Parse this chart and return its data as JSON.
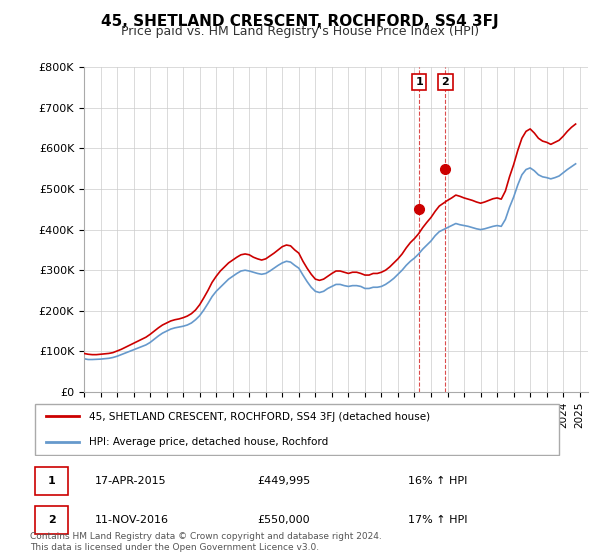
{
  "title": "45, SHETLAND CRESCENT, ROCHFORD, SS4 3FJ",
  "subtitle": "Price paid vs. HM Land Registry's House Price Index (HPI)",
  "ylabel_ticks": [
    "£0",
    "£100K",
    "£200K",
    "£300K",
    "£400K",
    "£500K",
    "£600K",
    "£700K",
    "£800K"
  ],
  "ylim": [
    0,
    800000
  ],
  "yticks": [
    0,
    100000,
    200000,
    300000,
    400000,
    500000,
    600000,
    700000,
    800000
  ],
  "xlim_start": 1995.0,
  "xlim_end": 2025.5,
  "background_color": "#ffffff",
  "grid_color": "#cccccc",
  "red_line_color": "#cc0000",
  "blue_line_color": "#6699cc",
  "transaction1": {
    "date_num": 2015.29,
    "price": 449995,
    "label": "1",
    "date_str": "17-APR-2015",
    "price_str": "£449,995",
    "hpi_str": "16% ↑ HPI"
  },
  "transaction2": {
    "date_num": 2016.87,
    "price": 550000,
    "label": "2",
    "date_str": "11-NOV-2016",
    "price_str": "£550,000",
    "hpi_str": "17% ↑ HPI"
  },
  "legend_label_red": "45, SHETLAND CRESCENT, ROCHFORD, SS4 3FJ (detached house)",
  "legend_label_blue": "HPI: Average price, detached house, Rochford",
  "footer": "Contains HM Land Registry data © Crown copyright and database right 2024.\nThis data is licensed under the Open Government Licence v3.0.",
  "hpi_data_x": [
    1995.0,
    1995.25,
    1995.5,
    1995.75,
    1996.0,
    1996.25,
    1996.5,
    1996.75,
    1997.0,
    1997.25,
    1997.5,
    1997.75,
    1998.0,
    1998.25,
    1998.5,
    1998.75,
    1999.0,
    1999.25,
    1999.5,
    1999.75,
    2000.0,
    2000.25,
    2000.5,
    2000.75,
    2001.0,
    2001.25,
    2001.5,
    2001.75,
    2002.0,
    2002.25,
    2002.5,
    2002.75,
    2003.0,
    2003.25,
    2003.5,
    2003.75,
    2004.0,
    2004.25,
    2004.5,
    2004.75,
    2005.0,
    2005.25,
    2005.5,
    2005.75,
    2006.0,
    2006.25,
    2006.5,
    2006.75,
    2007.0,
    2007.25,
    2007.5,
    2007.75,
    2008.0,
    2008.25,
    2008.5,
    2008.75,
    2009.0,
    2009.25,
    2009.5,
    2009.75,
    2010.0,
    2010.25,
    2010.5,
    2010.75,
    2011.0,
    2011.25,
    2011.5,
    2011.75,
    2012.0,
    2012.25,
    2012.5,
    2012.75,
    2013.0,
    2013.25,
    2013.5,
    2013.75,
    2014.0,
    2014.25,
    2014.5,
    2014.75,
    2015.0,
    2015.25,
    2015.5,
    2015.75,
    2016.0,
    2016.25,
    2016.5,
    2016.75,
    2017.0,
    2017.25,
    2017.5,
    2017.75,
    2018.0,
    2018.25,
    2018.5,
    2018.75,
    2019.0,
    2019.25,
    2019.5,
    2019.75,
    2020.0,
    2020.25,
    2020.5,
    2020.75,
    2021.0,
    2021.25,
    2021.5,
    2021.75,
    2022.0,
    2022.25,
    2022.5,
    2022.75,
    2023.0,
    2023.25,
    2023.5,
    2023.75,
    2024.0,
    2024.25,
    2024.5,
    2024.75
  ],
  "hpi_data_y": [
    82000,
    80000,
    80000,
    80500,
    81000,
    82000,
    83000,
    85000,
    88000,
    92000,
    96000,
    100000,
    104000,
    108000,
    112000,
    116000,
    122000,
    130000,
    138000,
    145000,
    150000,
    155000,
    158000,
    160000,
    162000,
    165000,
    170000,
    178000,
    188000,
    202000,
    218000,
    235000,
    248000,
    258000,
    268000,
    278000,
    285000,
    292000,
    298000,
    300000,
    298000,
    295000,
    292000,
    290000,
    292000,
    298000,
    305000,
    312000,
    318000,
    322000,
    320000,
    312000,
    305000,
    288000,
    272000,
    258000,
    248000,
    245000,
    248000,
    255000,
    260000,
    265000,
    265000,
    262000,
    260000,
    262000,
    262000,
    260000,
    255000,
    255000,
    258000,
    258000,
    260000,
    265000,
    272000,
    280000,
    290000,
    300000,
    312000,
    322000,
    330000,
    340000,
    352000,
    362000,
    372000,
    385000,
    395000,
    400000,
    405000,
    410000,
    415000,
    412000,
    410000,
    408000,
    405000,
    402000,
    400000,
    402000,
    405000,
    408000,
    410000,
    408000,
    425000,
    455000,
    480000,
    510000,
    535000,
    548000,
    552000,
    545000,
    535000,
    530000,
    528000,
    525000,
    528000,
    532000,
    540000,
    548000,
    555000,
    562000
  ],
  "price_data_x": [
    1995.0,
    1995.25,
    1995.5,
    1995.75,
    1996.0,
    1996.25,
    1996.5,
    1996.75,
    1997.0,
    1997.25,
    1997.5,
    1997.75,
    1998.0,
    1998.25,
    1998.5,
    1998.75,
    1999.0,
    1999.25,
    1999.5,
    1999.75,
    2000.0,
    2000.25,
    2000.5,
    2000.75,
    2001.0,
    2001.25,
    2001.5,
    2001.75,
    2002.0,
    2002.25,
    2002.5,
    2002.75,
    2003.0,
    2003.25,
    2003.5,
    2003.75,
    2004.0,
    2004.25,
    2004.5,
    2004.75,
    2005.0,
    2005.25,
    2005.5,
    2005.75,
    2006.0,
    2006.25,
    2006.5,
    2006.75,
    2007.0,
    2007.25,
    2007.5,
    2007.75,
    2008.0,
    2008.25,
    2008.5,
    2008.75,
    2009.0,
    2009.25,
    2009.5,
    2009.75,
    2010.0,
    2010.25,
    2010.5,
    2010.75,
    2011.0,
    2011.25,
    2011.5,
    2011.75,
    2012.0,
    2012.25,
    2012.5,
    2012.75,
    2013.0,
    2013.25,
    2013.5,
    2013.75,
    2014.0,
    2014.25,
    2014.5,
    2014.75,
    2015.0,
    2015.25,
    2015.5,
    2015.75,
    2016.0,
    2016.25,
    2016.5,
    2016.75,
    2017.0,
    2017.25,
    2017.5,
    2017.75,
    2018.0,
    2018.25,
    2018.5,
    2018.75,
    2019.0,
    2019.25,
    2019.5,
    2019.75,
    2020.0,
    2020.25,
    2020.5,
    2020.75,
    2021.0,
    2021.25,
    2021.5,
    2021.75,
    2022.0,
    2022.25,
    2022.5,
    2022.75,
    2023.0,
    2023.25,
    2023.5,
    2023.75,
    2024.0,
    2024.25,
    2024.5,
    2024.75
  ],
  "price_data_y": [
    95000,
    93000,
    92000,
    92000,
    93000,
    94000,
    95000,
    97000,
    101000,
    105000,
    110000,
    115000,
    120000,
    125000,
    130000,
    135000,
    142000,
    150000,
    158000,
    165000,
    170000,
    175000,
    178000,
    180000,
    183000,
    187000,
    193000,
    202000,
    215000,
    232000,
    250000,
    270000,
    285000,
    298000,
    308000,
    318000,
    325000,
    332000,
    338000,
    340000,
    338000,
    332000,
    328000,
    325000,
    328000,
    335000,
    342000,
    350000,
    358000,
    362000,
    360000,
    350000,
    342000,
    322000,
    305000,
    290000,
    278000,
    275000,
    278000,
    285000,
    292000,
    298000,
    298000,
    295000,
    292000,
    295000,
    295000,
    292000,
    288000,
    288000,
    292000,
    292000,
    295000,
    300000,
    308000,
    318000,
    328000,
    340000,
    355000,
    368000,
    378000,
    390000,
    405000,
    418000,
    430000,
    445000,
    458000,
    465000,
    472000,
    478000,
    485000,
    482000,
    478000,
    475000,
    472000,
    468000,
    465000,
    468000,
    472000,
    476000,
    478000,
    475000,
    495000,
    530000,
    560000,
    595000,
    625000,
    642000,
    648000,
    638000,
    625000,
    618000,
    615000,
    610000,
    615000,
    620000,
    630000,
    642000,
    652000,
    660000
  ]
}
